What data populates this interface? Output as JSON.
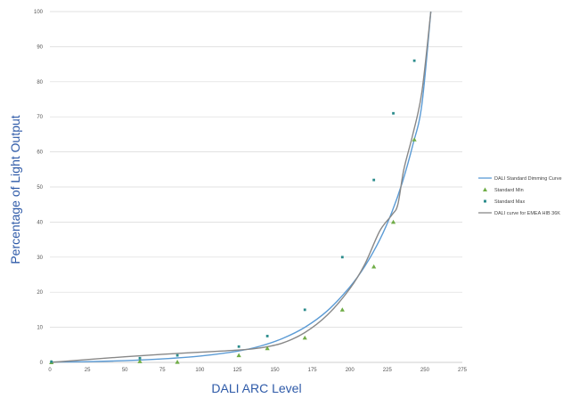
{
  "chart_data": {
    "type": "line",
    "xlabel": "DALI ARC Level",
    "ylabel": "Percentage of Light Output",
    "xlim": [
      0,
      275
    ],
    "ylim": [
      0,
      100
    ],
    "xticks": [
      0,
      25,
      50,
      75,
      100,
      125,
      150,
      175,
      200,
      225,
      250,
      275
    ],
    "yticks": [
      0,
      10,
      20,
      30,
      40,
      50,
      60,
      70,
      80,
      90,
      100
    ],
    "grid": "horizontal",
    "legend_position": "right",
    "series": [
      {
        "name": "DALI Standard Dimming Curve",
        "kind": "line",
        "color": "#5b9bd5",
        "x": [
          1,
          25,
          50,
          75,
          100,
          125,
          140,
          155,
          170,
          185,
          200,
          210,
          220,
          228,
          235,
          242,
          248,
          254
        ],
        "y": [
          0.1,
          0.2,
          0.5,
          1,
          1.8,
          3.2,
          4.6,
          6.8,
          10,
          14.7,
          21.5,
          27.4,
          35,
          42.8,
          51.3,
          62,
          73.4,
          100
        ]
      },
      {
        "name": "Standard Min",
        "kind": "scatter",
        "marker": "triangle",
        "color": "#70ad47",
        "x": [
          1,
          60,
          85,
          126,
          145,
          170,
          195,
          216,
          229,
          243
        ],
        "y": [
          0,
          0.3,
          0.1,
          2,
          4,
          7,
          15,
          27.3,
          40,
          63.5
        ]
      },
      {
        "name": "Standard Max",
        "kind": "scatter",
        "marker": "square",
        "color": "#2b8c8c",
        "x": [
          1,
          60,
          85,
          126,
          145,
          170,
          195,
          216,
          229,
          243
        ],
        "y": [
          0.2,
          1.2,
          2,
          4.5,
          7.5,
          15,
          30,
          52,
          71,
          86
        ]
      },
      {
        "name": "DALI curve for EMEA HIB 36K",
        "kind": "line",
        "color": "#888888",
        "x": [
          1,
          25,
          50,
          75,
          100,
          125,
          140,
          155,
          170,
          185,
          200,
          210,
          220,
          228,
          232,
          236,
          242,
          248,
          254
        ],
        "y": [
          0,
          0.8,
          1.6,
          2.3,
          2.9,
          3.5,
          4.1,
          5.5,
          8.5,
          13.5,
          21,
          28,
          37.5,
          42,
          45,
          55,
          65,
          77,
          100
        ]
      }
    ]
  }
}
